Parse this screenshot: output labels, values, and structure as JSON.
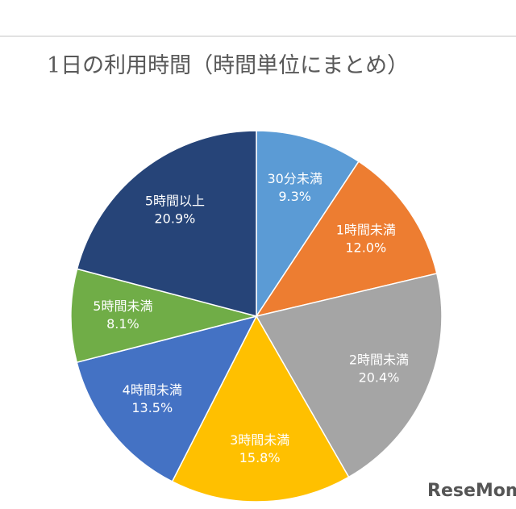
{
  "chart_data": {
    "type": "pie",
    "title": "1日の利用時間（時間単位にまとめ）",
    "categories": [
      "30分未満",
      "1時間未満",
      "2時間未満",
      "3時間未満",
      "4時間未満",
      "5時間未満",
      "5時間以上"
    ],
    "values": [
      9.3,
      12.0,
      20.4,
      15.8,
      13.5,
      8.1,
      20.9
    ],
    "value_labels": [
      "9.3%",
      "12.0%",
      "20.4%",
      "15.8%",
      "13.5%",
      "8.1%",
      "20.9%"
    ],
    "colors": [
      "#5b9bd5",
      "#ed7d31",
      "#a5a5a5",
      "#ffc000",
      "#4472c4",
      "#70ad47",
      "#264478"
    ]
  },
  "watermark": "ReseMom"
}
